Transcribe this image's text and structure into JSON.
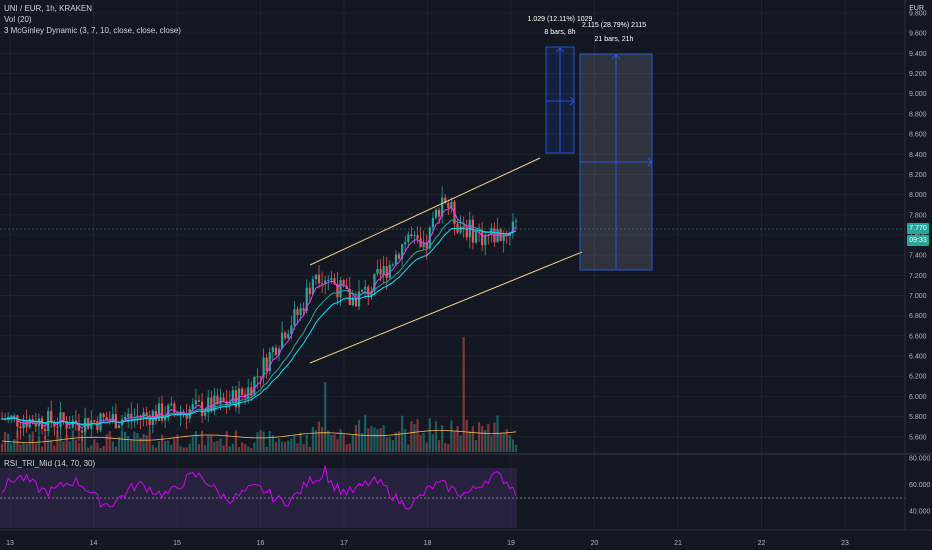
{
  "legend": {
    "symbol": "UNI / EUR, 1h, KRAKEN",
    "volume": "Vol (20)",
    "indicator": "3 McGinley Dynamic (3, 7, 10, close, close, close)",
    "rsi": "RSI_TRI_Mid (14, 70, 30)"
  },
  "price_axis": {
    "currency": "EUR",
    "ticks": [
      "9.800",
      "9.600",
      "9.400",
      "9.200",
      "9.000",
      "8.800",
      "8.600",
      "8.400",
      "8.200",
      "8.000",
      "7.800",
      "7.600",
      "7.400",
      "7.200",
      "7.000",
      "6.800",
      "6.600",
      "6.400",
      "6.200",
      "6.000",
      "5.800",
      "5.600"
    ],
    "current_price": "7.770",
    "countdown": "09:33"
  },
  "rsi_axis": {
    "ticks": [
      "80.000",
      "60.000",
      "40.000"
    ]
  },
  "time_axis": {
    "ticks": [
      "13",
      "14",
      "15",
      "16",
      "17",
      "18",
      "19",
      "20",
      "21",
      "22",
      "23"
    ]
  },
  "measures": [
    {
      "label": "1.029 (12.11%) 1029",
      "sub": "8 bars, 8h"
    },
    {
      "label": "2.115 (28.79%) 2115",
      "sub": "21 bars, 21h"
    }
  ],
  "colors": {
    "background": "#131722",
    "up": "#26a69a",
    "down": "#ef5350",
    "channel": "#f5d08a",
    "measure": "#2962ff",
    "rsi_line": "#d500f9",
    "mcginley_1": "#e040fb",
    "mcginley_2": "#26a69a",
    "mcginley_3": "#00e5ff"
  }
}
